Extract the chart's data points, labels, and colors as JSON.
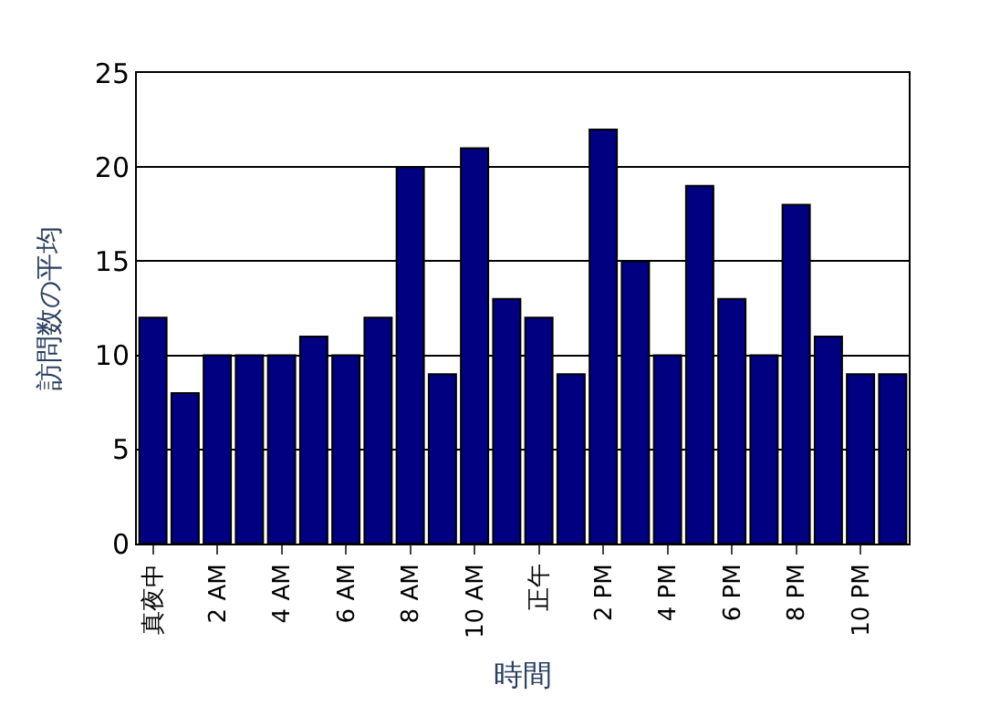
{
  "chart_data": {
    "type": "bar",
    "xlabel": "時間",
    "ylabel": "訪問数の平均",
    "categories": [
      "真夜中",
      null,
      "2 AM",
      null,
      "4 AM",
      null,
      "6 AM",
      null,
      "8 AM",
      null,
      "10 AM",
      null,
      "正午",
      null,
      "2 PM",
      null,
      "4 PM",
      null,
      "6 PM",
      null,
      "8 PM",
      null,
      "10 PM",
      null
    ],
    "values": [
      12,
      8,
      10,
      10,
      10,
      11,
      10,
      12,
      20,
      9,
      21,
      13,
      12,
      9,
      22,
      15,
      10,
      19,
      13,
      10,
      18,
      11,
      9,
      9
    ],
    "color": "#000080",
    "ylim": [
      0,
      25
    ],
    "yticks": [
      0,
      5,
      10,
      15,
      20,
      25
    ],
    "grid": "y",
    "legend": false
  }
}
